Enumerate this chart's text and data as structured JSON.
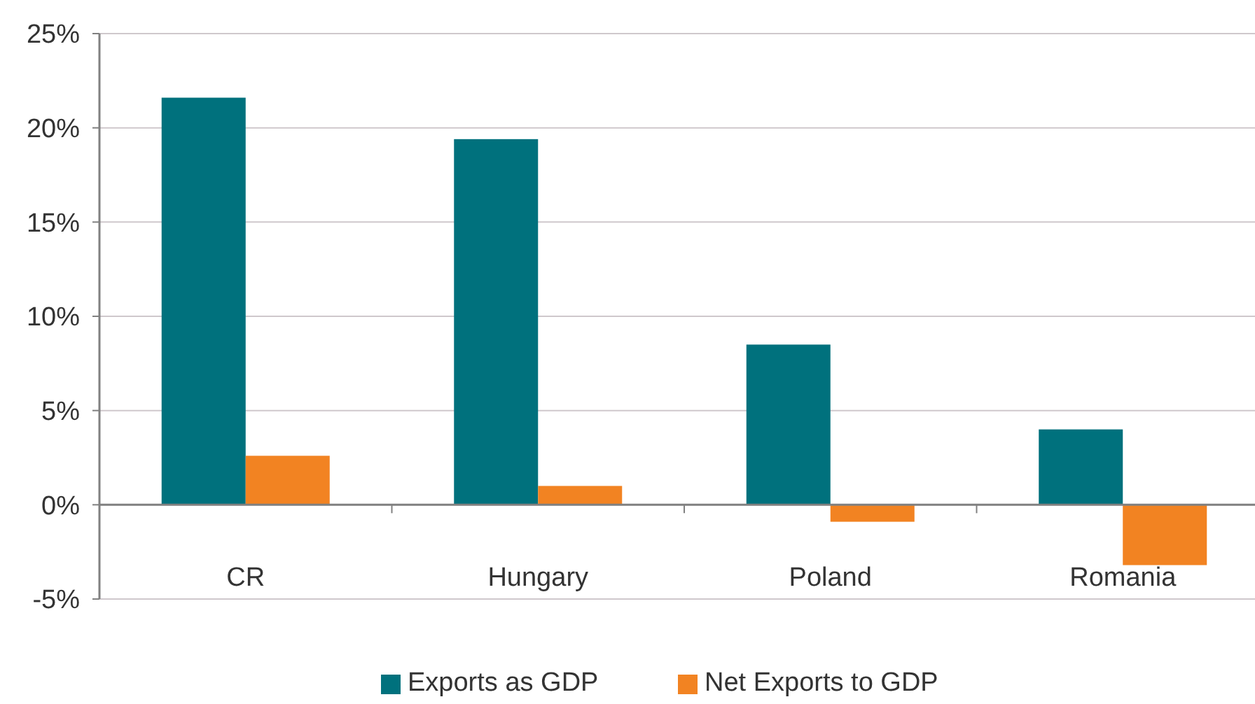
{
  "chart_data": {
    "type": "bar",
    "categories": [
      "CR",
      "Hungary",
      "Poland",
      "Romania"
    ],
    "series": [
      {
        "name": "Exports as GDP",
        "color": "#00717d",
        "values": [
          21.6,
          19.4,
          8.5,
          4.0
        ]
      },
      {
        "name": "Net Exports to GDP",
        "color": "#f28322",
        "values": [
          2.6,
          1.0,
          -0.9,
          -3.2
        ]
      }
    ],
    "ylim": [
      -5,
      25
    ],
    "yticks": [
      {
        "value": -5,
        "label": "-5%"
      },
      {
        "value": 0,
        "label": "0%"
      },
      {
        "value": 5,
        "label": "5%"
      },
      {
        "value": 10,
        "label": "10%"
      },
      {
        "value": 15,
        "label": "15%"
      },
      {
        "value": 20,
        "label": "20%"
      },
      {
        "value": 25,
        "label": "25%"
      }
    ],
    "grid": "y",
    "legend": "bottom"
  }
}
